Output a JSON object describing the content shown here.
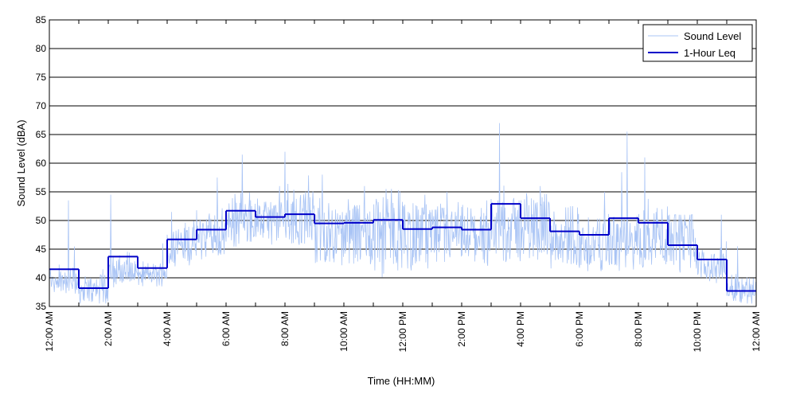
{
  "chart_data": {
    "type": "line",
    "title": "",
    "xlabel": "Time (HH:MM)",
    "ylabel": "Sound Level (dBA)",
    "ylim": [
      35,
      85
    ],
    "xlim_hours": [
      0,
      24
    ],
    "y_ticks": [
      35,
      40,
      45,
      50,
      55,
      60,
      65,
      70,
      75,
      80,
      85
    ],
    "x_tick_labels": [
      "12:00 AM",
      "2:00 AM",
      "4:00 AM",
      "6:00 AM",
      "8:00 AM",
      "10:00 AM",
      "12:00 PM",
      "2:00 PM",
      "4:00 PM",
      "6:00 PM",
      "8:00 PM",
      "10:00 PM",
      "12:00 AM"
    ],
    "grid": "horizontal",
    "legend_position": "top-right",
    "colors": {
      "sound_level": "#a9c4f5",
      "leq": "#0000c8",
      "grid": "#000000"
    },
    "series": [
      {
        "name": "Sound Level",
        "style": "thin-line",
        "hourly_mean": [
          39.5,
          38.0,
          41.0,
          40.5,
          46.0,
          47.5,
          49.5,
          50.0,
          50.0,
          48.0,
          47.5,
          48.0,
          47.5,
          47.5,
          47.5,
          48.5,
          49.0,
          47.5,
          46.0,
          46.0,
          47.5,
          47.0,
          42.0,
          38.0
        ],
        "hourly_min": [
          37.0,
          35.5,
          38.0,
          38.5,
          42.0,
          42.5,
          45.0,
          45.5,
          44.0,
          41.0,
          40.0,
          39.0,
          40.0,
          41.0,
          41.5,
          41.5,
          42.0,
          40.5,
          40.5,
          40.5,
          40.0,
          40.0,
          39.0,
          35.5
        ],
        "hourly_max": [
          53.5,
          41.5,
          54.5,
          46.0,
          51.5,
          57.5,
          61.5,
          56.0,
          62.0,
          58.0,
          56.0,
          55.5,
          54.5,
          55.0,
          53.5,
          67.0,
          56.0,
          52.5,
          55.0,
          65.5,
          61.0,
          51.0,
          51.0,
          45.5
        ]
      },
      {
        "name": "1-Hour Leq",
        "style": "step",
        "hours": [
          0,
          1,
          2,
          3,
          4,
          5,
          6,
          7,
          8,
          9,
          10,
          11,
          12,
          13,
          14,
          15,
          16,
          17,
          18,
          19,
          20,
          21,
          22,
          23
        ],
        "values": [
          41.5,
          38.2,
          43.7,
          41.7,
          46.7,
          48.4,
          51.7,
          50.6,
          51.1,
          49.5,
          49.6,
          50.1,
          48.5,
          48.8,
          48.4,
          52.9,
          50.4,
          48.1,
          47.5,
          50.4,
          49.6,
          45.7,
          43.2,
          37.7
        ]
      }
    ]
  }
}
